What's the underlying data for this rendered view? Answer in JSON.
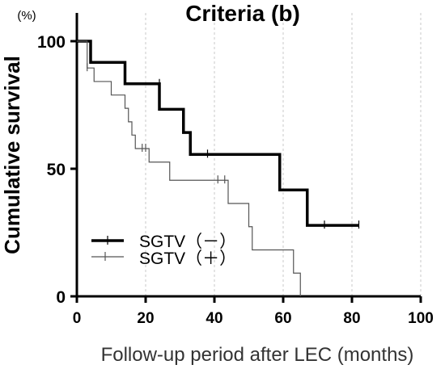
{
  "chart_data": {
    "type": "line",
    "title": "Criteria (b)",
    "y_unit": "(%)",
    "ylabel": "Cumulative survival",
    "xlabel": "Follow-up period after LEC (months)",
    "xlim": [
      0,
      100
    ],
    "ylim": [
      0,
      100
    ],
    "x_ticks": [
      "0",
      "20",
      "40",
      "60",
      "80",
      "100"
    ],
    "y_ticks": [
      "0",
      "50",
      "100"
    ],
    "grid": "vertical dashed lines",
    "legend_position": "bottom-left",
    "series": [
      {
        "name": "SGTV（－）",
        "style": "thick",
        "color": "#000000",
        "steps": [
          [
            0,
            100
          ],
          [
            4,
            91.7
          ],
          [
            14,
            83.3
          ],
          [
            24,
            73.3
          ],
          [
            31,
            64.2
          ],
          [
            33,
            55.6
          ],
          [
            59,
            41.7
          ],
          [
            67,
            27.8
          ],
          [
            82,
            27.8
          ]
        ],
        "censored": [
          [
            24,
            83.3
          ],
          [
            38,
            55.6
          ],
          [
            72,
            27.8
          ],
          [
            82,
            27.8
          ]
        ]
      },
      {
        "name": "SGTV（＋）",
        "style": "thin",
        "color": "#555555",
        "steps": [
          [
            0,
            100
          ],
          [
            3,
            89.5
          ],
          [
            5,
            84.2
          ],
          [
            10,
            78.9
          ],
          [
            14,
            73.7
          ],
          [
            15,
            68.4
          ],
          [
            16,
            63.2
          ],
          [
            17,
            57.9
          ],
          [
            21,
            52.6
          ],
          [
            27,
            45.5
          ],
          [
            44,
            36.4
          ],
          [
            50,
            27.3
          ],
          [
            51,
            18.2
          ],
          [
            63,
            9.1
          ],
          [
            65,
            0
          ]
        ],
        "censored": [
          [
            3,
            89.5
          ],
          [
            19,
            57.9
          ],
          [
            20,
            57.9
          ],
          [
            41,
            45.5
          ],
          [
            43,
            45.5
          ]
        ]
      }
    ]
  }
}
